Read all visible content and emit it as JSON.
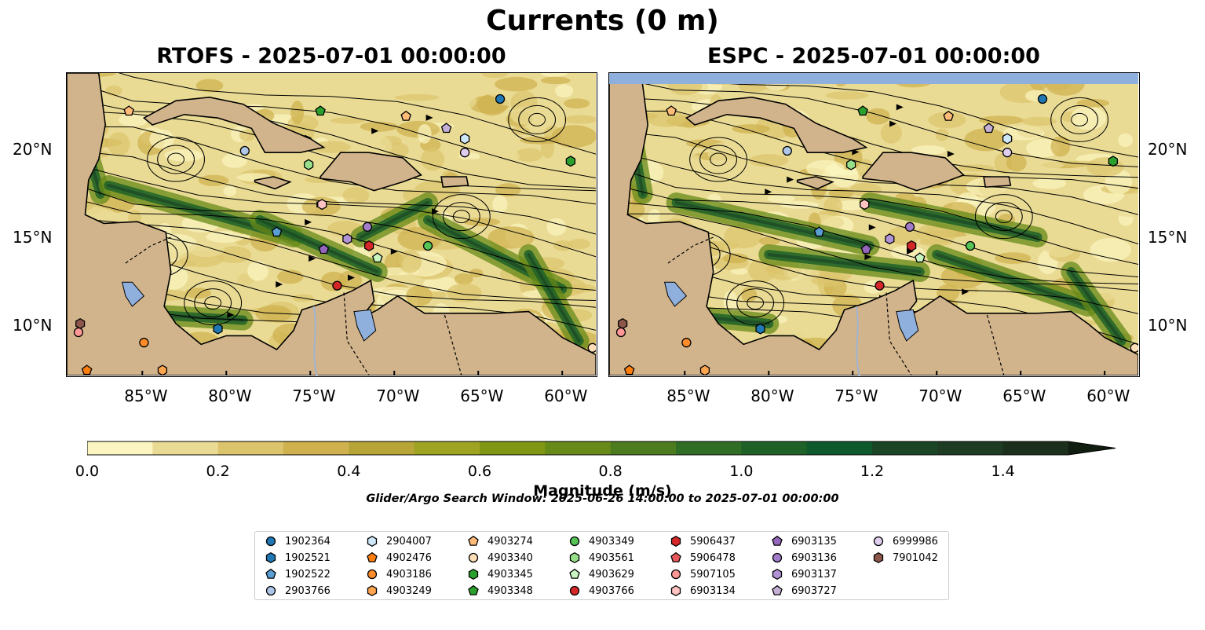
{
  "title": "Currents (0 m)",
  "panels": [
    {
      "id": "rtofs",
      "title": "RTOFS - 2025-07-01 00:00:00"
    },
    {
      "id": "espc",
      "title": "ESPC - 2025-07-01 00:00:00"
    }
  ],
  "map": {
    "lon_range": [
      -89.5,
      -58.0
    ],
    "lat_range": [
      7.0,
      24.5
    ],
    "lon_ticks": [
      "85°W",
      "80°W",
      "75°W",
      "70°W",
      "65°W",
      "60°W"
    ],
    "lat_ticks": [
      "20°N",
      "15°N",
      "10°N"
    ],
    "land_color": "#d2b48c",
    "lake_color": "#8fb0dc"
  },
  "colorbar": {
    "label": "Magnitude (m/s)",
    "ticks": [
      "0.0",
      "0.2",
      "0.4",
      "0.6",
      "0.8",
      "1.0",
      "1.2",
      "1.4"
    ],
    "range": [
      0,
      1.5
    ],
    "colors": [
      "#fbf5c1",
      "#eadb94",
      "#dcc46c",
      "#cfb14d",
      "#b7a637",
      "#9ea322",
      "#7f9712",
      "#678a18",
      "#4d7c1f",
      "#316e25",
      "#1f6228",
      "#0f5a2d",
      "#1a4626",
      "#1e3b23",
      "#1b2f1c"
    ]
  },
  "search_window": "Glider/Argo Search Window: 2025-06-26 14:00:00 to 2025-07-01 00:00:00",
  "legend": [
    {
      "id": "1902364",
      "color": "#1f77b4",
      "shape": "circle"
    },
    {
      "id": "1902521",
      "color": "#1f77b4",
      "shape": "hexagon"
    },
    {
      "id": "1902522",
      "color": "#5a9fd4",
      "shape": "pentagon"
    },
    {
      "id": "2903766",
      "color": "#aec7e8",
      "shape": "circle"
    },
    {
      "id": "2904007",
      "color": "#cfe8f8",
      "shape": "hexagon"
    },
    {
      "id": "4902476",
      "color": "#ff7f0e",
      "shape": "pentagon"
    },
    {
      "id": "4903186",
      "color": "#ff8c2a",
      "shape": "circle"
    },
    {
      "id": "4903249",
      "color": "#ffa54f",
      "shape": "hexagon"
    },
    {
      "id": "4903274",
      "color": "#ffbb78",
      "shape": "pentagon"
    },
    {
      "id": "4903340",
      "color": "#ffdfb8",
      "shape": "circle"
    },
    {
      "id": "4903345",
      "color": "#2ca02c",
      "shape": "hexagon"
    },
    {
      "id": "4903348",
      "color": "#2ca02c",
      "shape": "pentagon"
    },
    {
      "id": "4903349",
      "color": "#55c455",
      "shape": "circle"
    },
    {
      "id": "4903561",
      "color": "#98df8a",
      "shape": "hexagon"
    },
    {
      "id": "4903629",
      "color": "#c8f5c0",
      "shape": "pentagon"
    },
    {
      "id": "4903766",
      "color": "#d62728",
      "shape": "circle"
    },
    {
      "id": "5906437",
      "color": "#d62728",
      "shape": "hexagon"
    },
    {
      "id": "5906478",
      "color": "#e8585a",
      "shape": "pentagon"
    },
    {
      "id": "5907105",
      "color": "#ff9896",
      "shape": "circle"
    },
    {
      "id": "6903134",
      "color": "#ffc4c2",
      "shape": "hexagon"
    },
    {
      "id": "6903135",
      "color": "#9467bd",
      "shape": "pentagon"
    },
    {
      "id": "6903136",
      "color": "#a37cc9",
      "shape": "circle"
    },
    {
      "id": "6903137",
      "color": "#b294d6",
      "shape": "hexagon"
    },
    {
      "id": "6903727",
      "color": "#c5b0d5",
      "shape": "pentagon"
    },
    {
      "id": "6999986",
      "color": "#e0cfef",
      "shape": "circle"
    },
    {
      "id": "7901042",
      "color": "#8c564b",
      "shape": "hexagon"
    }
  ],
  "floats": [
    {
      "id": "1902364",
      "lon": -63.7,
      "lat": 23.0
    },
    {
      "id": "7901042",
      "lon": -88.7,
      "lat": 10.0
    },
    {
      "id": "5907105",
      "lon": -88.8,
      "lat": 9.5
    },
    {
      "id": "4902476",
      "lon": -88.3,
      "lat": 7.3
    },
    {
      "id": "4903186",
      "lon": -84.9,
      "lat": 8.9
    },
    {
      "id": "4903249",
      "lon": -83.8,
      "lat": 7.3
    },
    {
      "id": "4903274",
      "lon": -85.8,
      "lat": 22.3
    },
    {
      "id": "4903348",
      "lon": -74.4,
      "lat": 22.3
    },
    {
      "id": "2903766",
      "lon": -78.9,
      "lat": 20.0
    },
    {
      "id": "4903561",
      "lon": -75.1,
      "lat": 19.2
    },
    {
      "id": "6903134",
      "lon": -74.3,
      "lat": 16.9
    },
    {
      "id": "1902522",
      "lon": -77.0,
      "lat": 15.3
    },
    {
      "id": "6903135",
      "lon": -74.2,
      "lat": 14.3
    },
    {
      "id": "6903137",
      "lon": -72.8,
      "lat": 14.9
    },
    {
      "id": "6903136",
      "lon": -71.6,
      "lat": 15.6
    },
    {
      "id": "5906437",
      "lon": -71.5,
      "lat": 14.5
    },
    {
      "id": "4903629",
      "lon": -71.0,
      "lat": 13.8
    },
    {
      "id": "4903766",
      "lon": -73.4,
      "lat": 12.2
    },
    {
      "id": "4903349",
      "lon": -68.0,
      "lat": 14.5
    },
    {
      "id": "1902521",
      "lon": -80.5,
      "lat": 9.7
    },
    {
      "id": "4903274b",
      "lon": -69.3,
      "lat": 22.0
    },
    {
      "id": "6903727",
      "lon": -66.9,
      "lat": 21.3
    },
    {
      "id": "2904007",
      "lon": -65.8,
      "lat": 20.7
    },
    {
      "id": "6999986",
      "lon": -65.8,
      "lat": 19.9
    },
    {
      "id": "4903345",
      "lon": -59.5,
      "lat": 19.4
    },
    {
      "id": "4903340",
      "lon": -58.2,
      "lat": 8.6
    }
  ]
}
